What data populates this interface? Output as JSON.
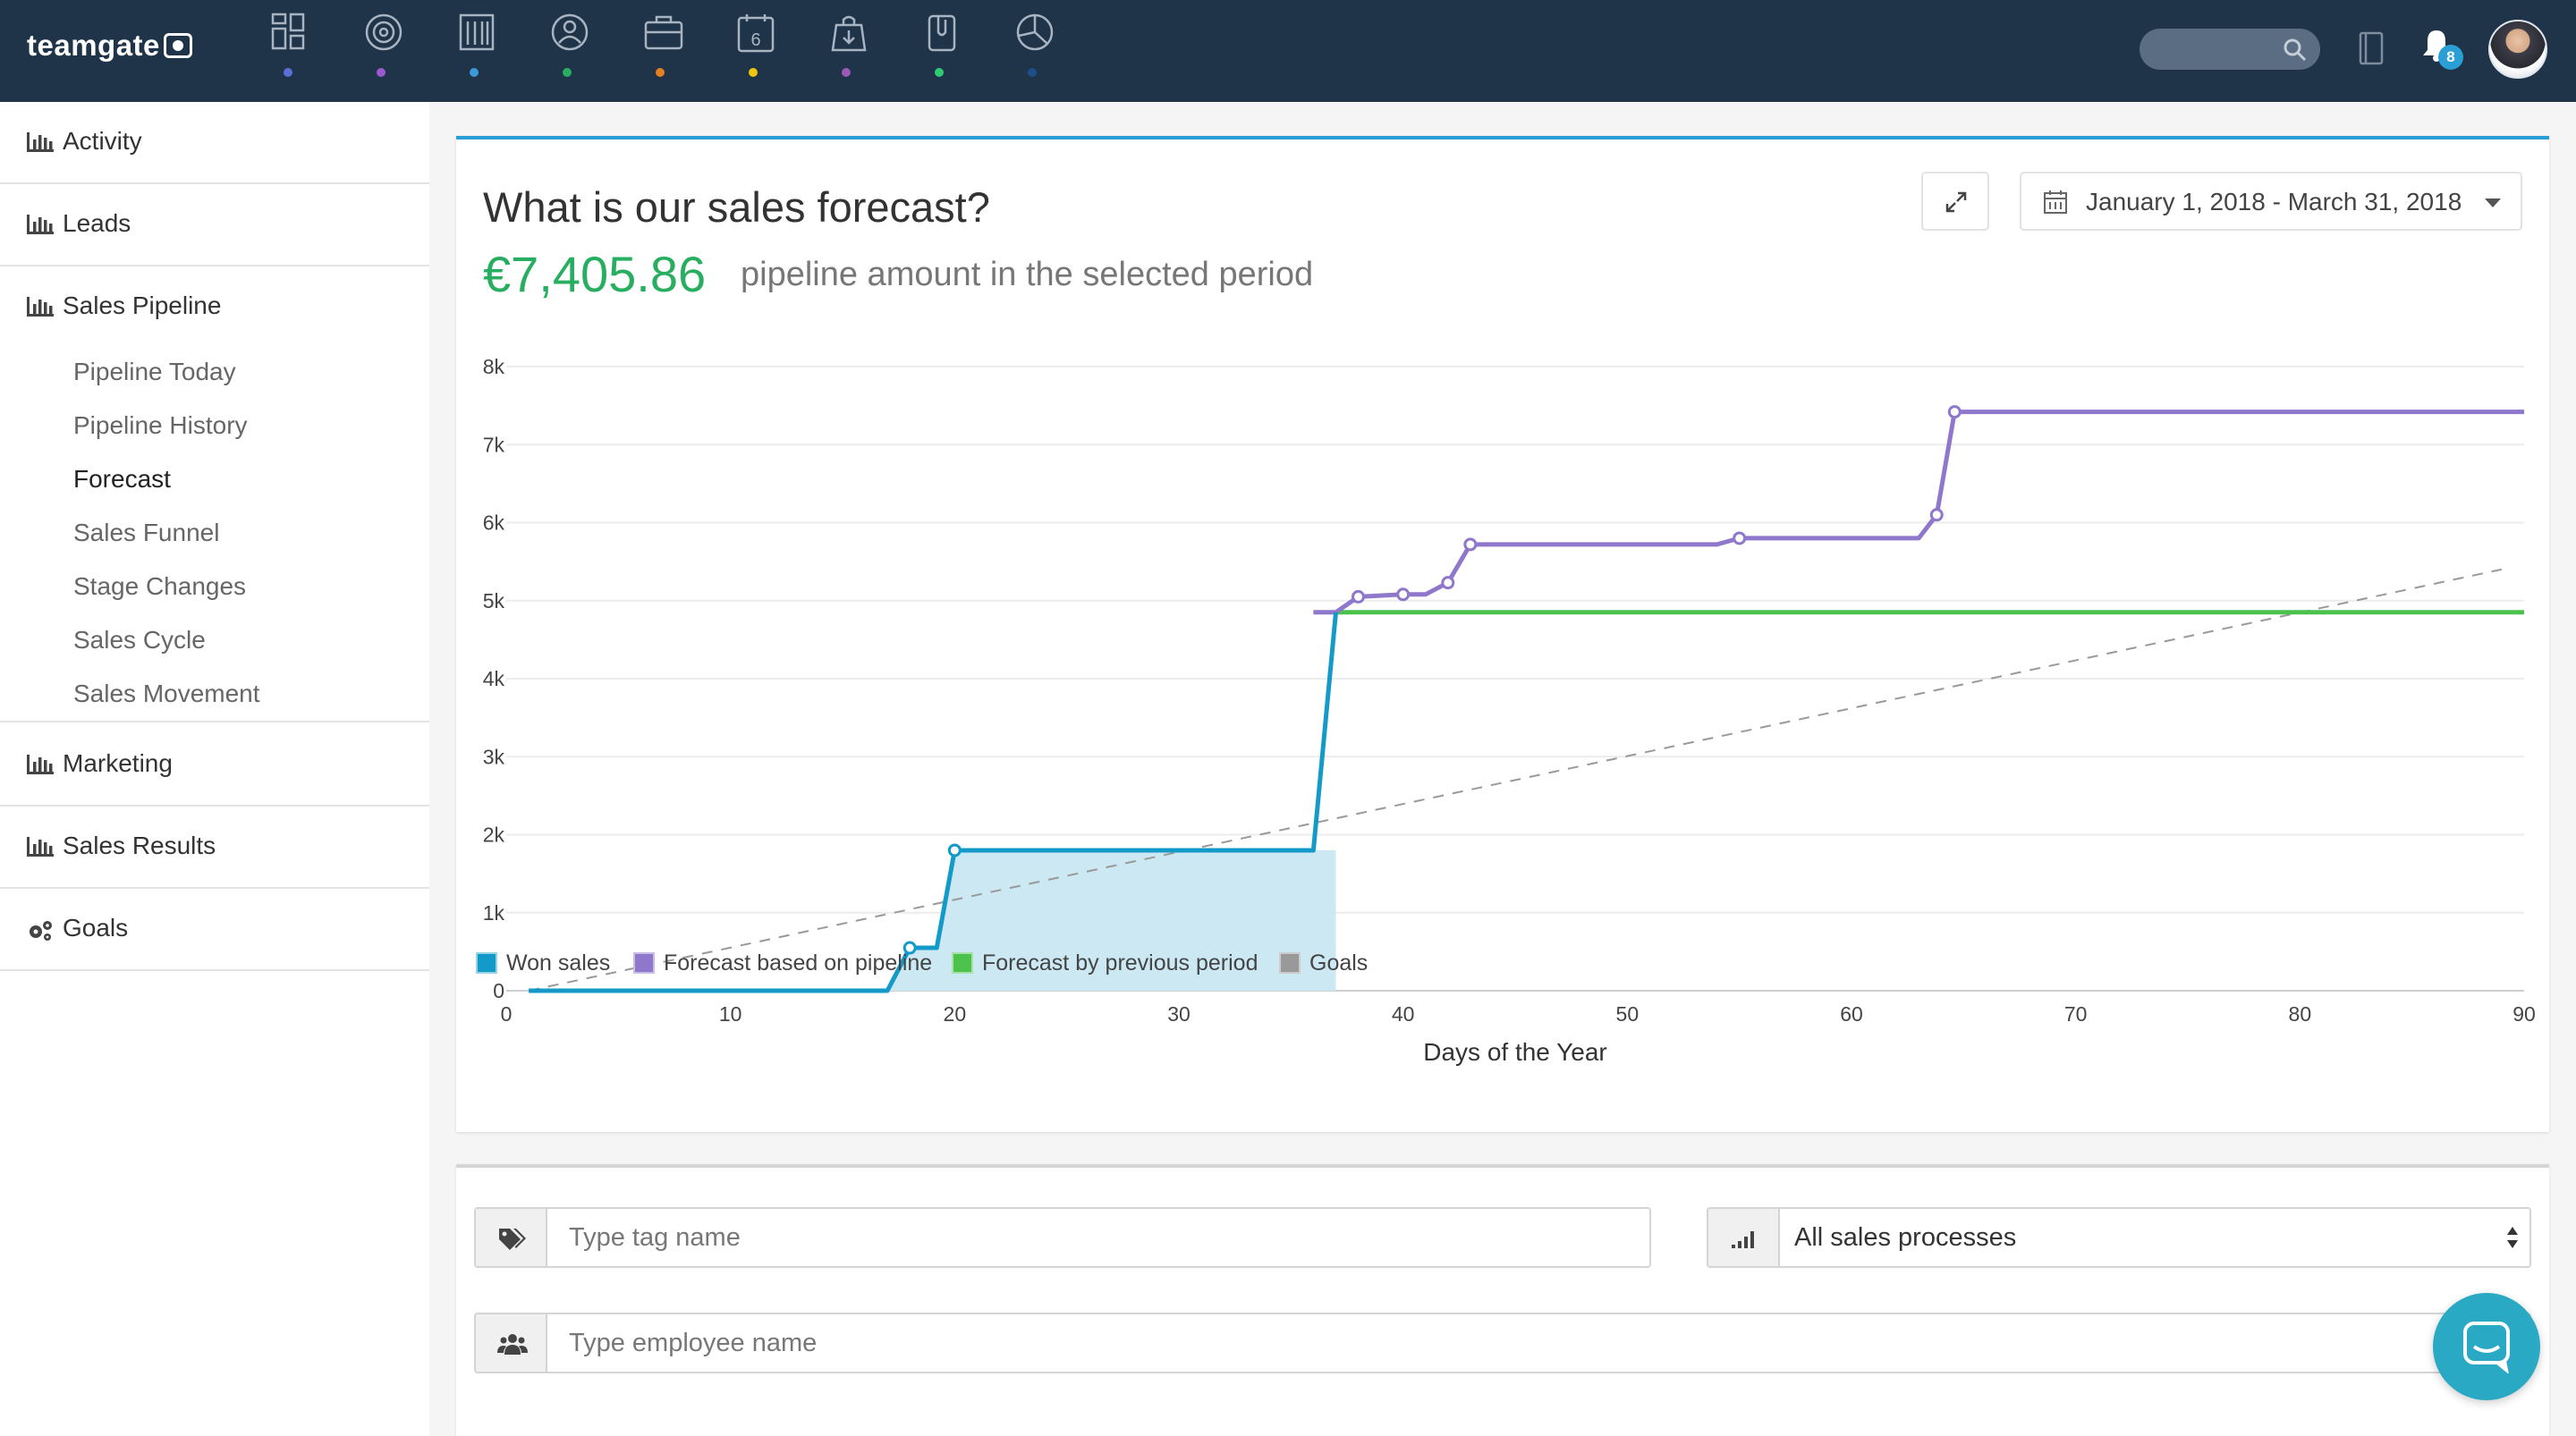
{
  "app": {
    "logo_text": "teamgate"
  },
  "topnav": {
    "icons": [
      {
        "name": "dashboard-icon",
        "dot_color": "#5b6fd8"
      },
      {
        "name": "target-icon",
        "dot_color": "#9b59d0"
      },
      {
        "name": "building-icon",
        "dot_color": "#3a9ad9"
      },
      {
        "name": "contacts-icon",
        "dot_color": "#27ae60"
      },
      {
        "name": "briefcase-icon",
        "dot_color": "#e67e22"
      },
      {
        "name": "calendar-icon",
        "dot_color": "#f1c40f"
      },
      {
        "name": "inbox-icon",
        "dot_color": "#9b59b6"
      },
      {
        "name": "attachment-icon",
        "dot_color": "#2ecc71"
      },
      {
        "name": "pie-chart-icon",
        "dot_color": "#1e4f8a"
      }
    ],
    "calendar_day": "6",
    "notification_count": "8"
  },
  "sidebar": {
    "sections": [
      {
        "label": "Activity"
      },
      {
        "label": "Leads"
      },
      {
        "label": "Sales Pipeline"
      },
      {
        "label": "Marketing"
      },
      {
        "label": "Sales Results"
      },
      {
        "label": "Goals"
      }
    ],
    "sub_items": [
      {
        "label": "Pipeline Today"
      },
      {
        "label": "Pipeline History"
      },
      {
        "label": "Forecast"
      },
      {
        "label": "Sales Funnel"
      },
      {
        "label": "Stage Changes"
      },
      {
        "label": "Sales Cycle"
      },
      {
        "label": "Sales Movement"
      }
    ],
    "active_sub_item": "Forecast"
  },
  "report": {
    "title": "What is our sales forecast?",
    "amount": "€7,405.86",
    "amount_caption": "pipeline amount in the selected period",
    "date_range": "January 1, 2018 - March 31, 2018"
  },
  "chart_data": {
    "type": "line",
    "title": "",
    "xlabel": "Days of the Year",
    "ylabel": "",
    "xlim": [
      0,
      90
    ],
    "ylim": [
      0,
      8000
    ],
    "x_ticks": [
      "0",
      "10",
      "20",
      "30",
      "40",
      "50",
      "60",
      "70",
      "80",
      "90"
    ],
    "y_ticks": [
      "0",
      "1k",
      "2k",
      "3k",
      "4k",
      "5k",
      "6k",
      "7k",
      "8k"
    ],
    "grid": true,
    "legend_position": "bottom-left",
    "series": [
      {
        "name": "Won sales",
        "color": "#139ac9",
        "fill": true,
        "points": [
          [
            1,
            0
          ],
          [
            17,
            0
          ],
          [
            18,
            550
          ],
          [
            19.2,
            550
          ],
          [
            20,
            1800
          ],
          [
            36,
            1800
          ],
          [
            37,
            4850
          ]
        ],
        "markers": [
          [
            18,
            550
          ],
          [
            20,
            1800
          ]
        ]
      },
      {
        "name": "Forecast based on pipeline",
        "color": "#8f77cc",
        "points": [
          [
            36,
            4850
          ],
          [
            37,
            4850
          ],
          [
            38,
            5050
          ],
          [
            40,
            5080
          ],
          [
            41,
            5080
          ],
          [
            42,
            5230
          ],
          [
            43,
            5720
          ],
          [
            54,
            5720
          ],
          [
            55,
            5800
          ],
          [
            63,
            5800
          ],
          [
            63.8,
            6100
          ],
          [
            64.6,
            7420
          ],
          [
            90,
            7420
          ]
        ],
        "markers": [
          [
            38,
            5050
          ],
          [
            40,
            5080
          ],
          [
            42,
            5230
          ],
          [
            43,
            5720
          ],
          [
            55,
            5800
          ],
          [
            63.8,
            6100
          ],
          [
            64.6,
            7420
          ]
        ]
      },
      {
        "name": "Forecast by previous period",
        "color": "#4cc14b",
        "points": [
          [
            37,
            4850
          ],
          [
            90,
            4850
          ]
        ]
      },
      {
        "name": "Goals",
        "color": "#999999",
        "dashed": true,
        "points": [
          [
            1,
            0
          ],
          [
            89,
            5400
          ]
        ]
      }
    ]
  },
  "filters": {
    "tag_placeholder": "Type tag name",
    "employee_placeholder": "Type employee name",
    "sales_process_selected": "All sales processes"
  }
}
